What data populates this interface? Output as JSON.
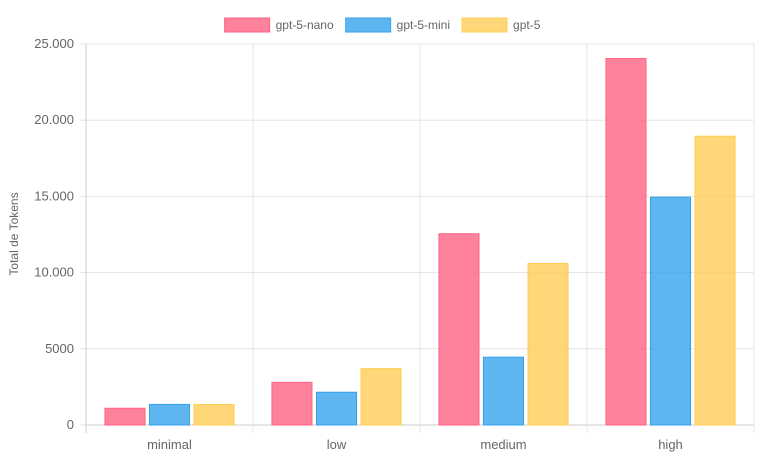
{
  "chart_data": {
    "type": "bar",
    "categories": [
      "minimal",
      "low",
      "medium",
      "high"
    ],
    "series": [
      {
        "name": "gpt-5-nano",
        "color": "#ff6384",
        "values": [
          1100,
          2800,
          12550,
          24050
        ]
      },
      {
        "name": "gpt-5-mini",
        "color": "#36a2eb",
        "values": [
          1350,
          2150,
          4450,
          14950
        ]
      },
      {
        "name": "gpt-5",
        "color": "#ffcd56",
        "values": [
          1350,
          3700,
          10600,
          18950
        ]
      }
    ],
    "ylabel": "Total de Tokens",
    "ylim": [
      0,
      25000
    ],
    "yticks": [
      0,
      5000,
      10000,
      15000,
      20000,
      25000
    ],
    "ytick_labels": [
      "0",
      "5000",
      "10.000",
      "15.000",
      "20.000",
      "25.000"
    ],
    "legend_position": "top-center",
    "grid": true
  }
}
